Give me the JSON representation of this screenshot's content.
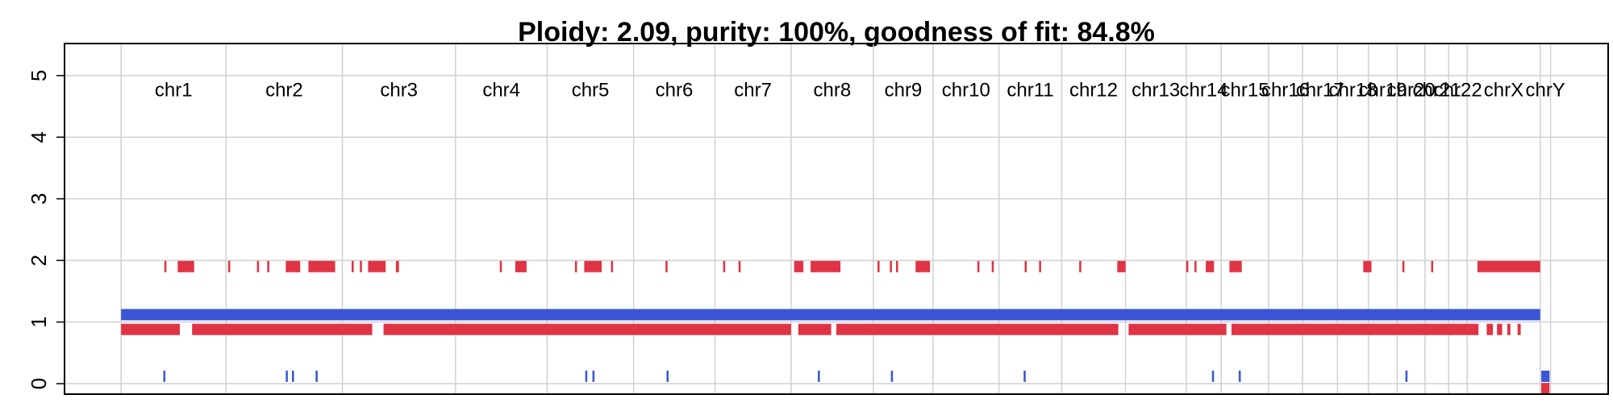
{
  "chart_data": {
    "type": "segments",
    "title": "Ploidy: 2.09, purity: 100%, goodness of fit: 84.8%",
    "chromosomes": [
      "chr1",
      "chr2",
      "chr3",
      "chr4",
      "chr5",
      "chr6",
      "chr7",
      "chr8",
      "chr9",
      "chr10",
      "chr11",
      "chr12",
      "chr13",
      "chr14",
      "chr15",
      "chr16",
      "chr17",
      "chr18",
      "chr19",
      "chr20",
      "chr21",
      "chr22",
      "chrX",
      "chrY"
    ],
    "boundaries": [
      118,
      220,
      333,
      443,
      532,
      616,
      695,
      769,
      849,
      907,
      971,
      1032,
      1094,
      1153,
      1187,
      1233,
      1266,
      1300,
      1330,
      1358,
      1385,
      1408,
      1426,
      1497,
      1507
    ],
    "xlim": [
      63,
      1563
    ],
    "ylim": [
      -0.17,
      5.52
    ],
    "yticks": [
      0,
      1,
      2,
      3,
      4,
      5
    ],
    "grid": true,
    "series": [
      {
        "color": "#3a56d4",
        "x_start": [
          118,
          159,
          278,
          284,
          307,
          569,
          576,
          648,
          795,
          866,
          995,
          1178,
          1204,
          1366,
          1498
        ],
        "x_end": [
          1497,
          161,
          280,
          286,
          309,
          571,
          578,
          650,
          797,
          868,
          997,
          1180,
          1206,
          1368,
          1506
        ],
        "values": [
          1.12,
          0.12,
          0.12,
          0.12,
          0.12,
          0.12,
          0.12,
          0.12,
          0.12,
          0.12,
          0.12,
          0.12,
          0.12,
          0.12,
          0.12
        ]
      },
      {
        "color": "#e03345",
        "x_start": [
          118,
          187,
          373,
          776,
          813,
          1097,
          1197,
          1445,
          1455,
          1465,
          1475,
          1498,
          160,
          173,
          222,
          250,
          260,
          278,
          300,
          342,
          350,
          358,
          385,
          486,
          501,
          559,
          568,
          594,
          647,
          703,
          718,
          772,
          788,
          853,
          865,
          871,
          890,
          950,
          964,
          996,
          1010,
          1049,
          1086,
          1153,
          1161,
          1172,
          1195,
          1325,
          1363,
          1391,
          1436
        ],
        "x_end": [
          175,
          362,
          769,
          808,
          1087,
          1192,
          1437,
          1451,
          1460,
          1468,
          1478,
          1506,
          162,
          189,
          224,
          252,
          262,
          292,
          326,
          344,
          352,
          375,
          388,
          488,
          512,
          561,
          585,
          596,
          649,
          705,
          720,
          781,
          817,
          855,
          867,
          873,
          904,
          952,
          966,
          998,
          1012,
          1051,
          1094,
          1155,
          1163,
          1180,
          1207,
          1333,
          1365,
          1393,
          1497
        ],
        "values": [
          0.88,
          0.88,
          0.88,
          0.88,
          0.88,
          0.88,
          0.88,
          0.88,
          0.88,
          0.88,
          0.88,
          -0.08,
          1.9,
          1.9,
          1.9,
          1.9,
          1.9,
          1.9,
          1.9,
          1.9,
          1.9,
          1.9,
          1.9,
          1.9,
          1.9,
          1.9,
          1.9,
          1.9,
          1.9,
          1.9,
          1.9,
          1.9,
          1.9,
          1.9,
          1.9,
          1.9,
          1.9,
          1.9,
          1.9,
          1.9,
          1.9,
          1.9,
          1.9,
          1.9,
          1.9,
          1.9,
          1.9,
          1.9,
          1.9,
          1.9,
          1.9
        ]
      }
    ]
  }
}
